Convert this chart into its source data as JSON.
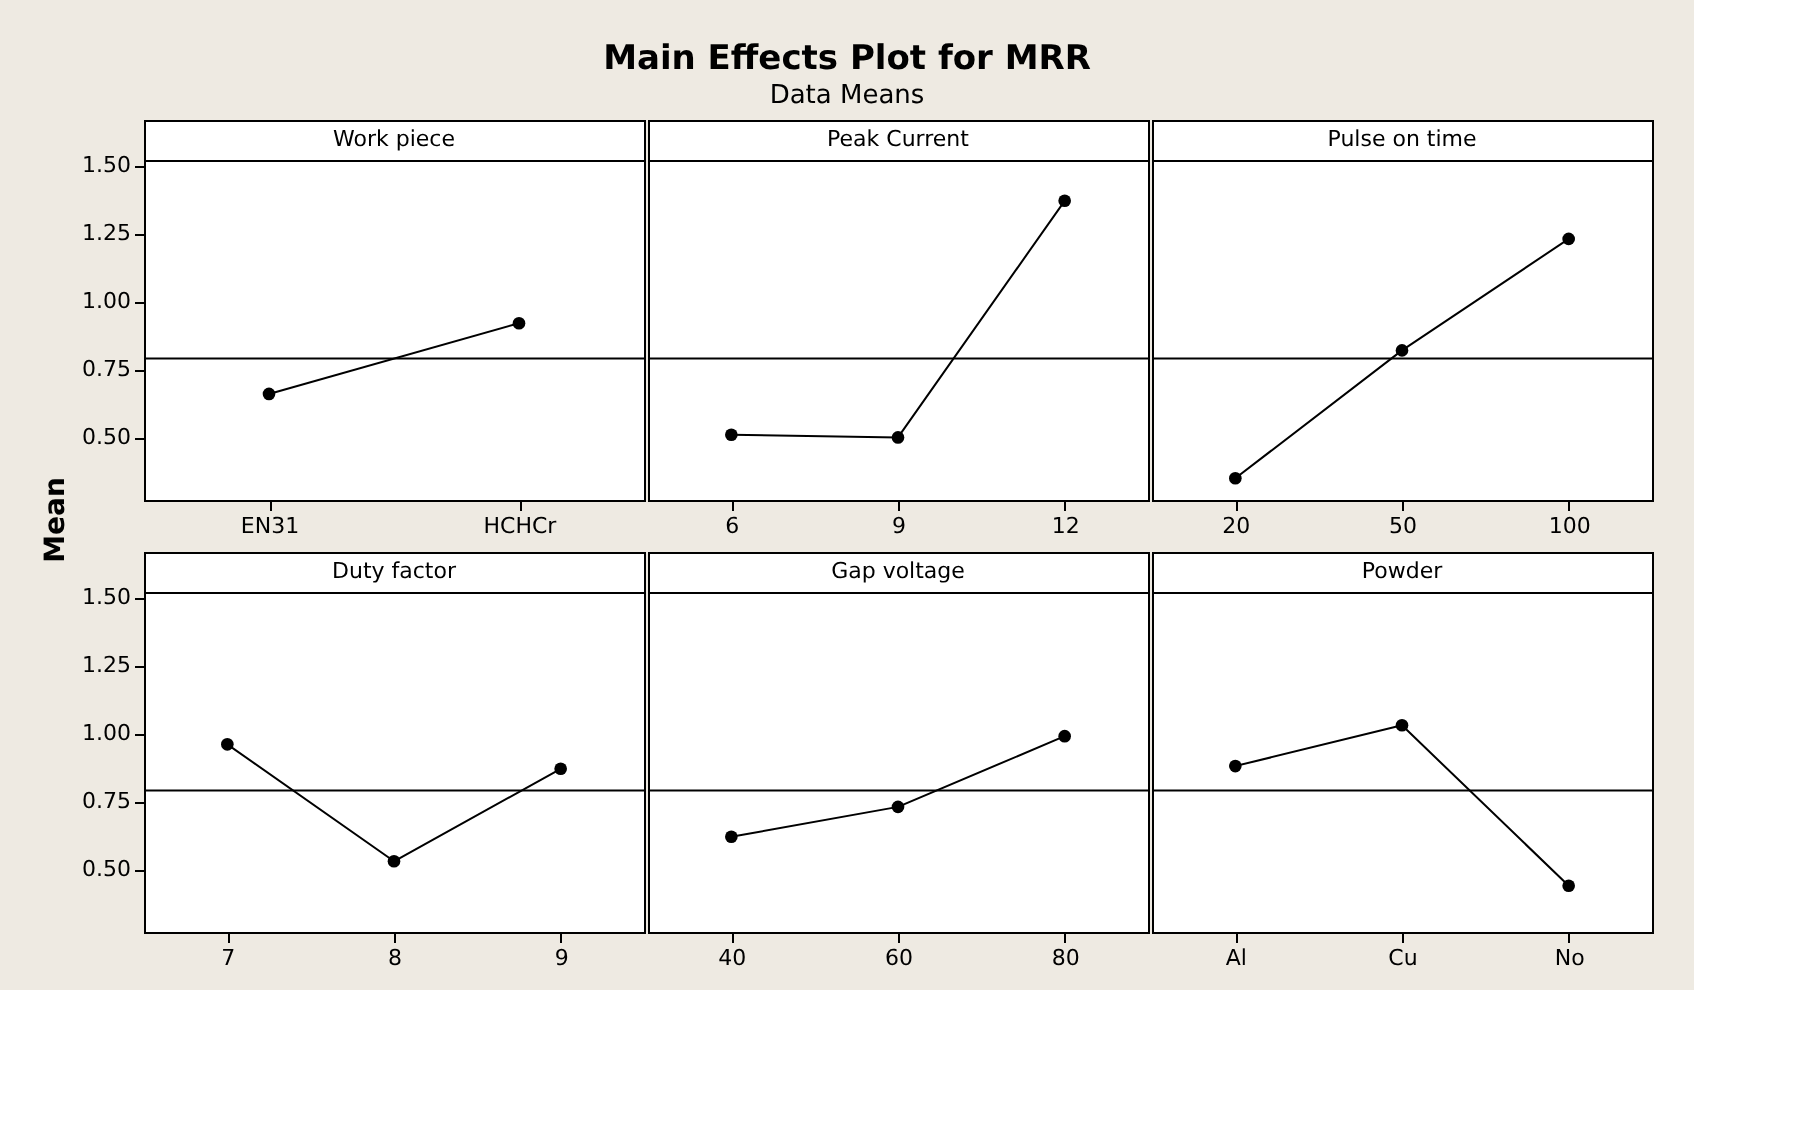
{
  "chart_data": [
    {
      "type": "other",
      "title": "Main Effects Plot for MRR",
      "subtitle": "Data Means",
      "ylabel": "Mean"
    },
    {
      "type": "line",
      "title": "Work piece",
      "categories": [
        "EN31",
        "HCHCr"
      ],
      "series": [
        {
          "color": "#000000",
          "values": [
            0.66,
            0.92
          ]
        }
      ],
      "ylim": [
        0.27,
        1.52
      ],
      "yticks": [
        {
          "value": 0.5,
          "label": "0.50"
        },
        {
          "value": 0.75,
          "label": "0.75"
        },
        {
          "value": 1.0,
          "label": "1.00"
        },
        {
          "value": 1.25,
          "label": "1.25"
        },
        {
          "value": 1.5,
          "label": "1.50"
        }
      ],
      "ref_lines": [
        {
          "axis": "y",
          "value": 0.79
        }
      ],
      "marker": "circle"
    },
    {
      "type": "line",
      "title": "Peak Current",
      "categories": [
        "6",
        "9",
        "12"
      ],
      "series": [
        {
          "color": "#000000",
          "values": [
            0.51,
            0.5,
            1.37
          ]
        }
      ],
      "ylim": [
        0.27,
        1.52
      ],
      "ref_lines": [
        {
          "axis": "y",
          "value": 0.79
        }
      ],
      "marker": "circle",
      "tick_labels": "x"
    },
    {
      "type": "line",
      "title": "Pulse on time",
      "categories": [
        "20",
        "50",
        "100"
      ],
      "series": [
        {
          "color": "#000000",
          "values": [
            0.35,
            0.82,
            1.23
          ]
        }
      ],
      "ylim": [
        0.27,
        1.52
      ],
      "ref_lines": [
        {
          "axis": "y",
          "value": 0.79
        }
      ],
      "marker": "circle",
      "tick_labels": "x"
    },
    {
      "type": "line",
      "title": "Duty factor",
      "categories": [
        "7",
        "8",
        "9"
      ],
      "series": [
        {
          "color": "#000000",
          "values": [
            0.96,
            0.53,
            0.87
          ]
        }
      ],
      "ylim": [
        0.27,
        1.52
      ],
      "yticks": [
        {
          "value": 0.5,
          "label": "0.50"
        },
        {
          "value": 0.75,
          "label": "0.75"
        },
        {
          "value": 1.0,
          "label": "1.00"
        },
        {
          "value": 1.25,
          "label": "1.25"
        },
        {
          "value": 1.5,
          "label": "1.50"
        }
      ],
      "ref_lines": [
        {
          "axis": "y",
          "value": 0.79
        }
      ],
      "marker": "circle"
    },
    {
      "type": "line",
      "title": "Gap voltage",
      "categories": [
        "40",
        "60",
        "80"
      ],
      "series": [
        {
          "color": "#000000",
          "values": [
            0.62,
            0.73,
            0.99
          ]
        }
      ],
      "ylim": [
        0.27,
        1.52
      ],
      "ref_lines": [
        {
          "axis": "y",
          "value": 0.79
        }
      ],
      "marker": "circle",
      "tick_labels": "x"
    },
    {
      "type": "line",
      "title": "Powder",
      "categories": [
        "Al",
        "Cu",
        "No"
      ],
      "series": [
        {
          "color": "#000000",
          "values": [
            0.88,
            1.03,
            0.44
          ]
        }
      ],
      "ylim": [
        0.27,
        1.52
      ],
      "ref_lines": [
        {
          "axis": "y",
          "value": 0.79
        }
      ],
      "marker": "circle",
      "tick_labels": "x"
    }
  ]
}
